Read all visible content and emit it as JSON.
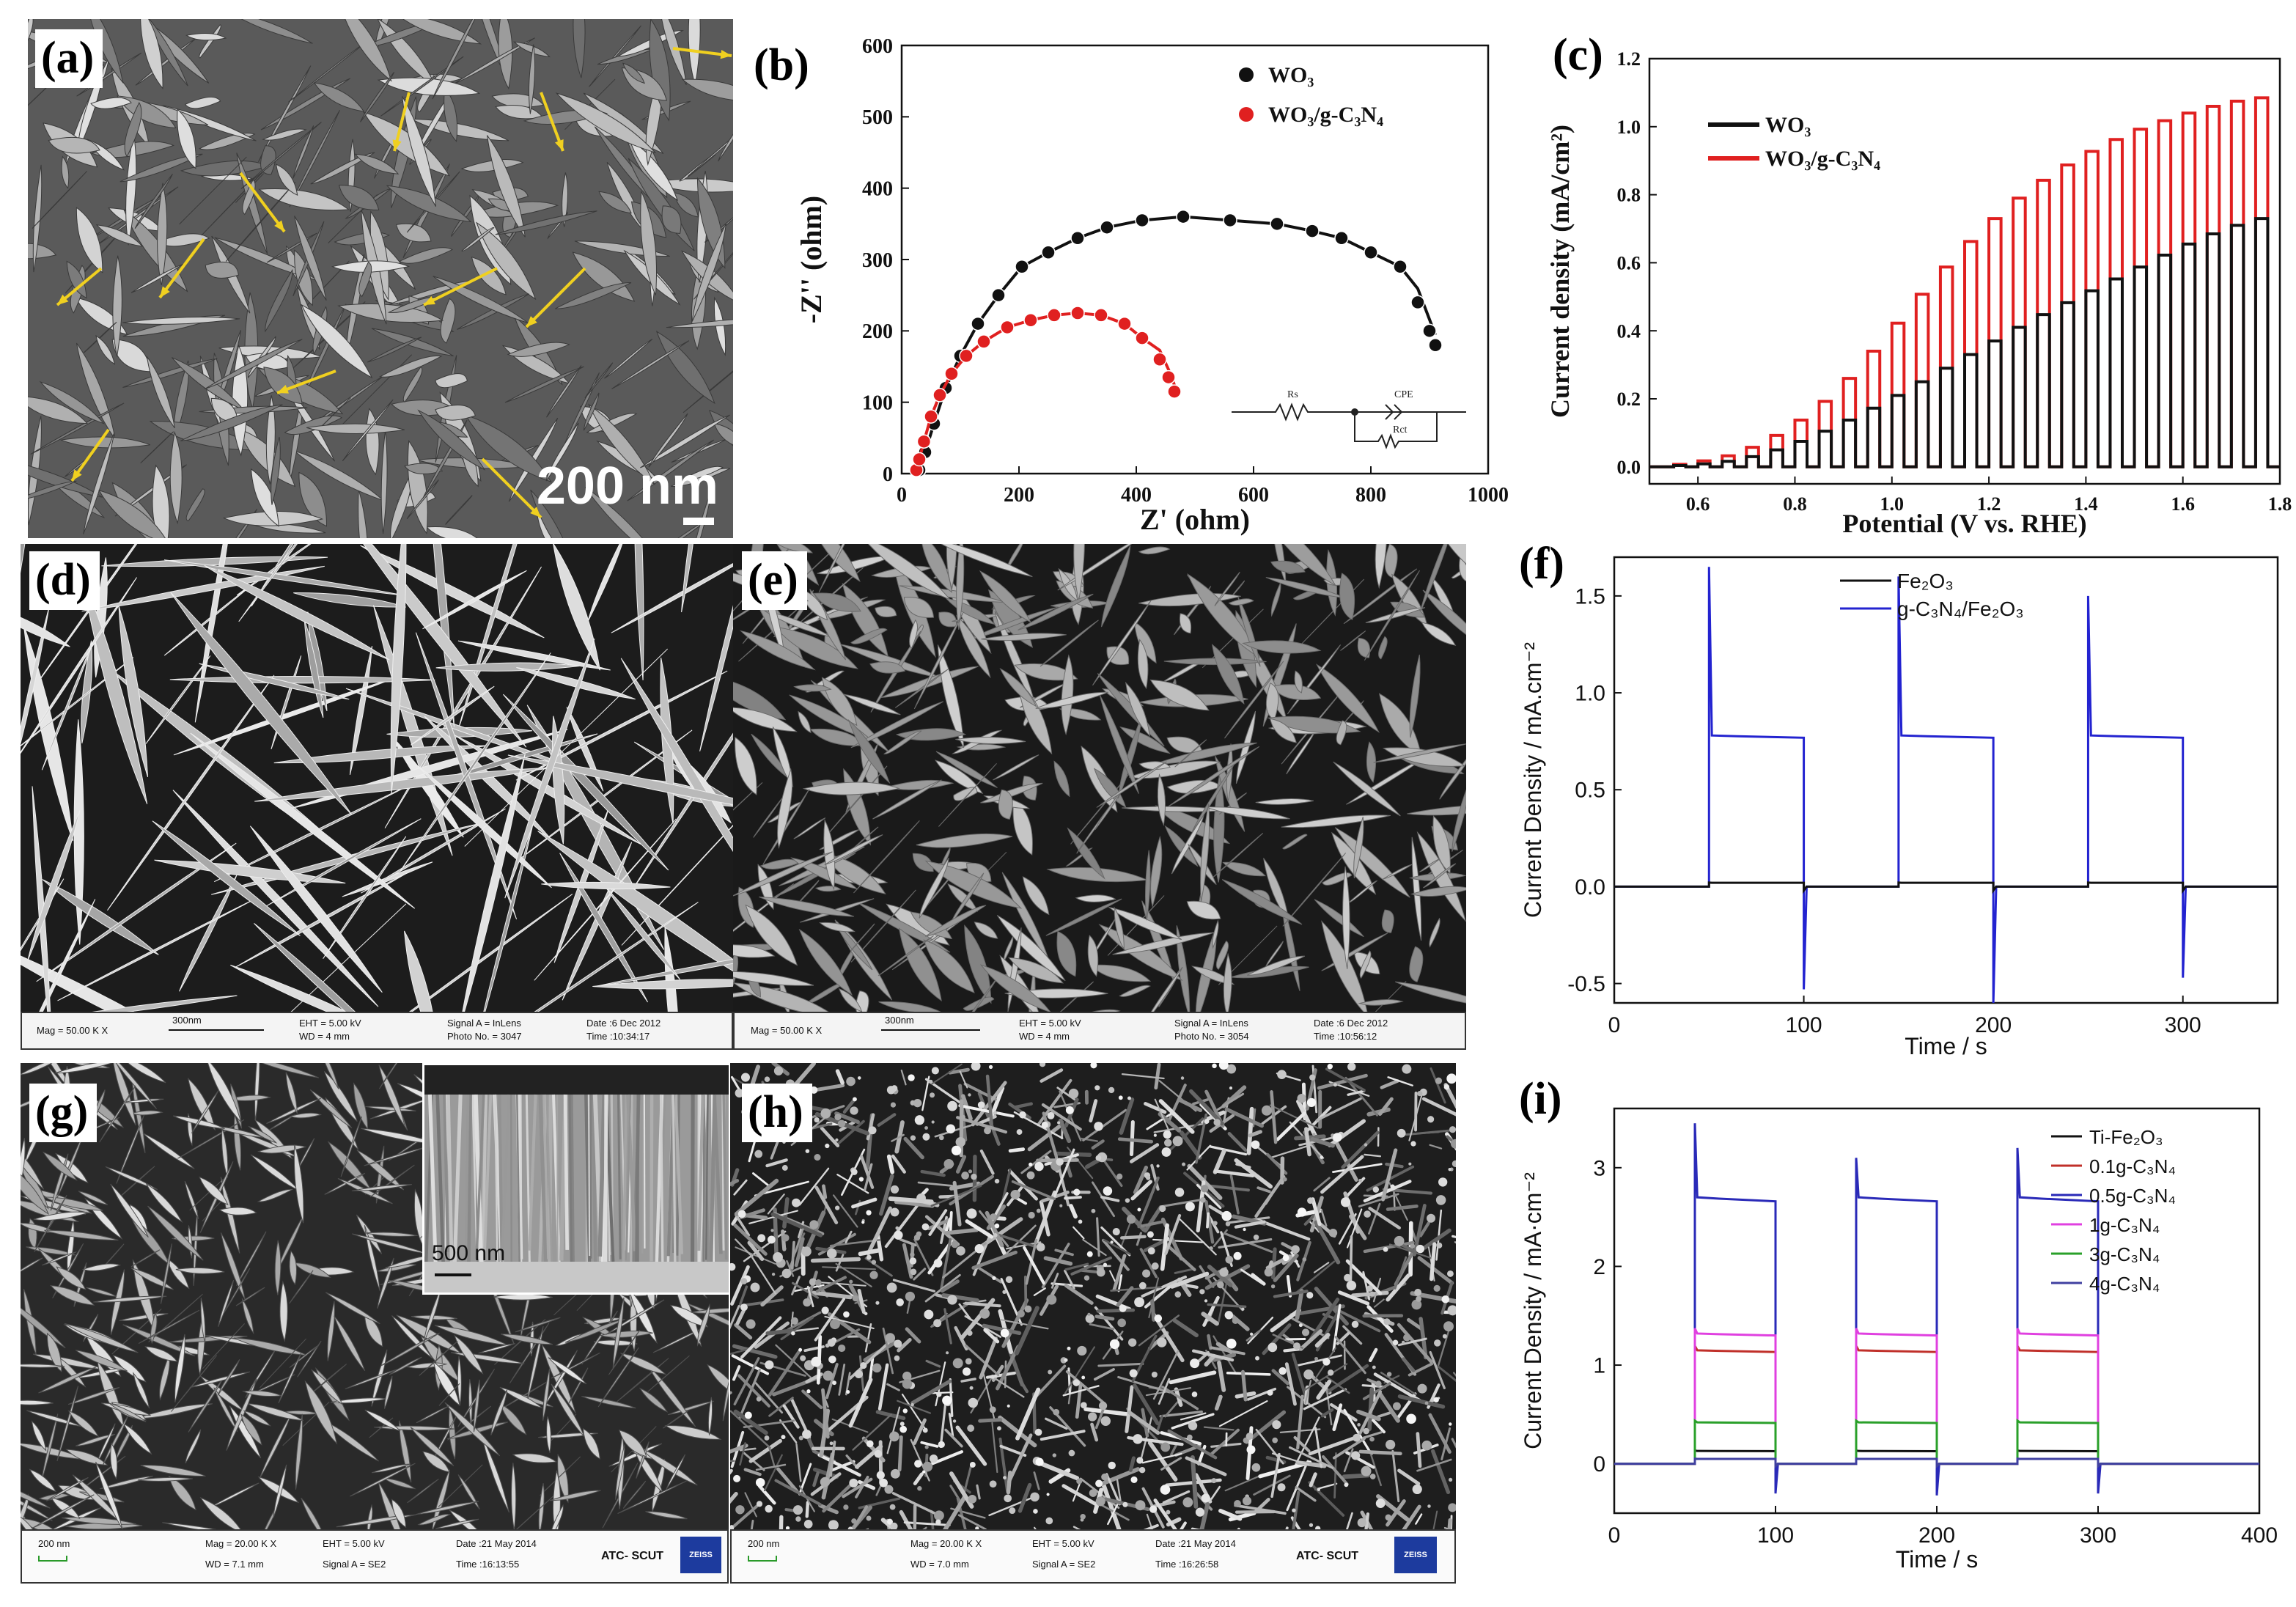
{
  "panels": {
    "a": {
      "label": "(a)",
      "scale": "200 nm"
    },
    "b": {
      "label": "(b)"
    },
    "c": {
      "label": "(c)"
    },
    "d": {
      "label": "(d)",
      "info": {
        "mag": "Mag = 50.00 K X",
        "bar": "300nm",
        "eht": "EHT = 5.00 kV",
        "wd": "WD = 4 mm",
        "signal": "Signal A = InLens",
        "photo": "Photo No. = 3047",
        "date": "Date :6 Dec 2012",
        "time": "Time :10:34:17"
      }
    },
    "e": {
      "label": "(e)",
      "info": {
        "mag": "Mag = 50.00 K X",
        "bar": "300nm",
        "eht": "EHT = 5.00 kV",
        "wd": "WD = 4 mm",
        "signal": "Signal A = InLens",
        "photo": "Photo No. = 3054",
        "date": "Date :6 Dec 2012",
        "time": "Time :10:56:12"
      }
    },
    "f": {
      "label": "(f)"
    },
    "g": {
      "label": "(g)",
      "inset_scale": "500 nm",
      "info": {
        "bar": "200 nm",
        "mag": "Mag = 20.00 K X",
        "eht": "EHT = 5.00 kV",
        "date": "Date :21 May 2014",
        "wd": "WD = 7.1 mm",
        "signal": "Signal A = SE2",
        "time": "Time :16:13:55",
        "org": "ATC- SCUT",
        "logo": "ZEISS"
      }
    },
    "h": {
      "label": "(h)",
      "info": {
        "bar": "200 nm",
        "mag": "Mag = 20.00 K X",
        "eht": "EHT = 5.00 kV",
        "date": "Date :21 May 2014",
        "wd": "WD = 7.0 mm",
        "signal": "Signal A = SE2",
        "time": "Time :16:26:58",
        "org": "ATC- SCUT",
        "logo": "ZEISS"
      }
    },
    "i": {
      "label": "(i)"
    }
  },
  "chart_data": [
    {
      "id": "b",
      "type": "scatter",
      "xlabel": "Z' (ohm)",
      "ylabel": "-Z'' (ohm)",
      "xlim": [
        0,
        1000
      ],
      "ylim": [
        0,
        600
      ],
      "xticks": [
        "0",
        "200",
        "400",
        "600",
        "800",
        "1000"
      ],
      "yticks": [
        "0",
        "100",
        "200",
        "300",
        "400",
        "500",
        "600"
      ],
      "legend_position": "top-right",
      "circuit_labels": [
        "Rs",
        "CPE",
        "Rct"
      ],
      "series": [
        {
          "name": "WO₃",
          "color": "#111111",
          "x": [
            30,
            40,
            55,
            75,
            100,
            130,
            165,
            205,
            250,
            300,
            350,
            410,
            480,
            560,
            640,
            700,
            750,
            800,
            850,
            880,
            900,
            910
          ],
          "y": [
            5,
            30,
            70,
            120,
            165,
            210,
            250,
            290,
            310,
            330,
            345,
            355,
            360,
            355,
            350,
            340,
            330,
            310,
            290,
            240,
            200,
            180
          ]
        },
        {
          "name": "WO₃/g-C₃N₄",
          "color": "#e02020",
          "x": [
            25,
            30,
            38,
            50,
            65,
            85,
            110,
            140,
            180,
            220,
            260,
            300,
            340,
            380,
            410,
            440,
            455,
            465
          ],
          "y": [
            5,
            20,
            45,
            80,
            110,
            140,
            165,
            185,
            205,
            215,
            222,
            225,
            222,
            210,
            190,
            160,
            135,
            115
          ]
        }
      ]
    },
    {
      "id": "c",
      "type": "line",
      "xlabel": "Potential (V vs. RHE)",
      "ylabel": "Current density (mA/cm²)",
      "xlim": [
        0.5,
        1.8
      ],
      "ylim": [
        -0.05,
        1.2
      ],
      "xticks": [
        "0.6",
        "0.8",
        "1.0",
        "1.2",
        "1.4",
        "1.6",
        "1.8"
      ],
      "yticks": [
        "0.0",
        "0.2",
        "0.4",
        "0.6",
        "0.8",
        "1.0",
        "1.2"
      ],
      "legend_position": "top-left",
      "chopped": true,
      "series": [
        {
          "name": "WO₃",
          "color": "#111111",
          "x": [
            0.5,
            0.6,
            0.7,
            0.8,
            0.9,
            1.0,
            1.1,
            1.2,
            1.3,
            1.4,
            1.5,
            1.6,
            1.7,
            1.8
          ],
          "y": [
            0.0,
            0.005,
            0.02,
            0.06,
            0.12,
            0.19,
            0.27,
            0.35,
            0.43,
            0.5,
            0.57,
            0.64,
            0.7,
            0.74
          ]
        },
        {
          "name": "WO₃/g-C₃N₄",
          "color": "#e02020",
          "x": [
            0.5,
            0.6,
            0.7,
            0.8,
            0.9,
            1.0,
            1.1,
            1.2,
            1.3,
            1.4,
            1.5,
            1.6,
            1.7,
            1.8
          ],
          "y": [
            0.0,
            0.01,
            0.04,
            0.11,
            0.22,
            0.38,
            0.55,
            0.7,
            0.82,
            0.91,
            0.98,
            1.03,
            1.07,
            1.09
          ]
        }
      ]
    },
    {
      "id": "f",
      "type": "line",
      "xlabel": "Time / s",
      "ylabel": "Current Density / mA.cm⁻²",
      "xlim": [
        0,
        350
      ],
      "ylim": [
        -0.6,
        1.7
      ],
      "xticks": [
        "0",
        "100",
        "200",
        "300"
      ],
      "yticks": [
        "-0.5",
        "0.0",
        "0.5",
        "1.0",
        "1.5"
      ],
      "legend_position": "top-center",
      "light_on": [
        50,
        150,
        250
      ],
      "light_off": [
        100,
        200,
        300
      ],
      "series": [
        {
          "name": "Fe₂O₃",
          "color": "#111111",
          "on_level": 0.02,
          "spike": 0.02,
          "neg_spike": -0.01
        },
        {
          "name": "g-C₃N₄/Fe₂O₃",
          "color": "#2323d0",
          "on_level": 0.78,
          "spikes": [
            1.65,
            1.6,
            1.5
          ],
          "neg_spikes": [
            -0.53,
            -0.6,
            -0.47
          ]
        }
      ]
    },
    {
      "id": "i",
      "type": "line",
      "xlabel": "Time / s",
      "ylabel": "Current Density / mA·cm⁻²",
      "xlim": [
        0,
        400
      ],
      "ylim": [
        -0.5,
        3.6
      ],
      "xticks": [
        "0",
        "100",
        "200",
        "300",
        "400"
      ],
      "yticks": [
        "0",
        "1",
        "2",
        "3"
      ],
      "legend_position": "top-right",
      "light_on": [
        50,
        150,
        250
      ],
      "light_off": [
        100,
        200,
        300
      ],
      "series": [
        {
          "name": "Ti-Fe₂O₃",
          "color": "#111111",
          "on_level": 0.13
        },
        {
          "name": "0.1g-C₃N₄",
          "color": "#c0302a",
          "on_level": 1.15
        },
        {
          "name": "0.5g-C₃N₄",
          "color": "#2a2ab8",
          "on_level": 2.7,
          "spikes": [
            3.45,
            3.1,
            3.2
          ],
          "neg_spikes": [
            -0.3,
            -0.32,
            -0.3
          ]
        },
        {
          "name": "1g-C₃N₄",
          "color": "#e040e0",
          "on_level": 1.32
        },
        {
          "name": "3g-C₃N₄",
          "color": "#2aa02a",
          "on_level": 0.42
        },
        {
          "name": "4g-C₃N₄",
          "color": "#4040a0",
          "on_level": 0.05
        }
      ]
    }
  ]
}
